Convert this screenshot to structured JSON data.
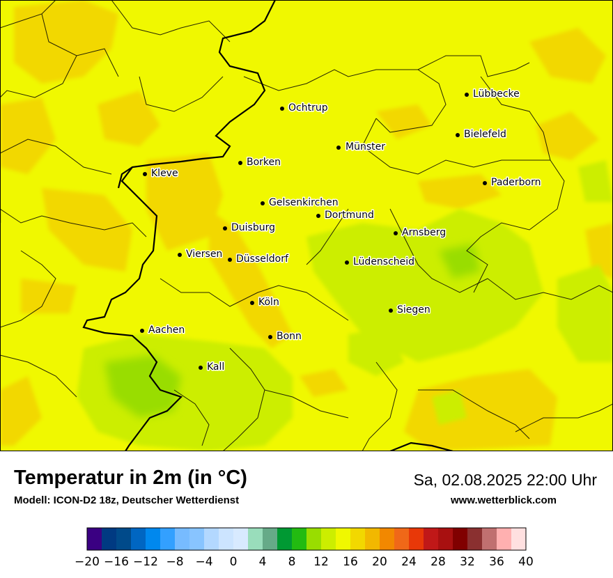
{
  "title": "Temperatur in 2m (in °C)",
  "subtitle": "Modell: ICON-D2 18z, Deutscher Wetterdienst",
  "datetime": "Sa, 02.08.2025 22:00 Uhr",
  "website": "www.wetterblick.com",
  "cities": [
    {
      "name": "Lübbecke"
    },
    {
      "name": "Ochtrup"
    },
    {
      "name": "Bielefeld"
    },
    {
      "name": "Münster"
    },
    {
      "name": "Borken"
    },
    {
      "name": "Kleve"
    },
    {
      "name": "Paderborn"
    },
    {
      "name": "Gelsenkirchen"
    },
    {
      "name": "Dortmund"
    },
    {
      "name": "Duisburg"
    },
    {
      "name": "Arnsberg"
    },
    {
      "name": "Viersen"
    },
    {
      "name": "Düsseldorf"
    },
    {
      "name": "Lüdenscheid"
    },
    {
      "name": "Köln"
    },
    {
      "name": "Siegen"
    },
    {
      "name": "Aachen"
    },
    {
      "name": "Bonn"
    },
    {
      "name": "Kall"
    }
  ],
  "legend": {
    "tick_labels": [
      "−20",
      "−16",
      "−12",
      "−8",
      "−4",
      "0",
      "4",
      "8",
      "12",
      "16",
      "20",
      "24",
      "28",
      "32",
      "36",
      "40"
    ],
    "colors": [
      "#3a0082",
      "#003a82",
      "#004a8a",
      "#0066c2",
      "#0088ee",
      "#33a0ff",
      "#77bbff",
      "#88c4ff",
      "#b3d8ff",
      "#cce4ff",
      "#d8eaff",
      "#99ddbb",
      "#66aa88",
      "#009933",
      "#22bb11",
      "#99dd00",
      "#ccee00",
      "#f0f800",
      "#f2d800",
      "#f2b800",
      "#f28800",
      "#f06818",
      "#e83808",
      "#c01818",
      "#a81010",
      "#800000",
      "#8a3030",
      "#c07070",
      "#ffb0b0",
      "#ffe0e0"
    ]
  }
}
